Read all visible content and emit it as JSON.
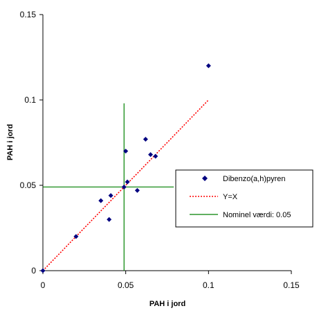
{
  "chart_data": {
    "type": "scatter",
    "xlabel": "PAH i jord",
    "ylabel": "PAH i jord",
    "xlim": [
      0,
      0.15
    ],
    "ylim": [
      0,
      0.15
    ],
    "xticks": [
      "0",
      "0.05",
      "0.1",
      "0.15"
    ],
    "yticks": [
      "0",
      "0.05",
      "0.1",
      "0.15"
    ],
    "grid": false,
    "legend_position": "right",
    "series": [
      {
        "name": "Dibenzo(a,h)pyren",
        "color": "#000080",
        "marker": "diamond",
        "points": [
          {
            "x": 0,
            "y": 0
          },
          {
            "x": 0.02,
            "y": 0.02
          },
          {
            "x": 0.035,
            "y": 0.041
          },
          {
            "x": 0.04,
            "y": 0.03
          },
          {
            "x": 0.041,
            "y": 0.044
          },
          {
            "x": 0.049,
            "y": 0.049
          },
          {
            "x": 0.05,
            "y": 0.07
          },
          {
            "x": 0.051,
            "y": 0.052
          },
          {
            "x": 0.057,
            "y": 0.047
          },
          {
            "x": 0.062,
            "y": 0.077
          },
          {
            "x": 0.065,
            "y": 0.068
          },
          {
            "x": 0.068,
            "y": 0.067
          },
          {
            "x": 0.1,
            "y": 0.12
          }
        ]
      },
      {
        "name": "Y=X",
        "color": "#ff0000",
        "line_style": "dotted",
        "points": [
          {
            "x": 0,
            "y": 0
          },
          {
            "x": 0.1,
            "y": 0.1
          }
        ]
      },
      {
        "name": "Nominel værdi:  0.05",
        "color": "#008000",
        "line_style": "solid",
        "segments": [
          {
            "x1": 0.049,
            "y1": 0,
            "x2": 0.049,
            "y2": 0.098
          },
          {
            "x1": 0,
            "y1": 0.049,
            "x2": 0.079,
            "y2": 0.049
          }
        ]
      }
    ]
  }
}
